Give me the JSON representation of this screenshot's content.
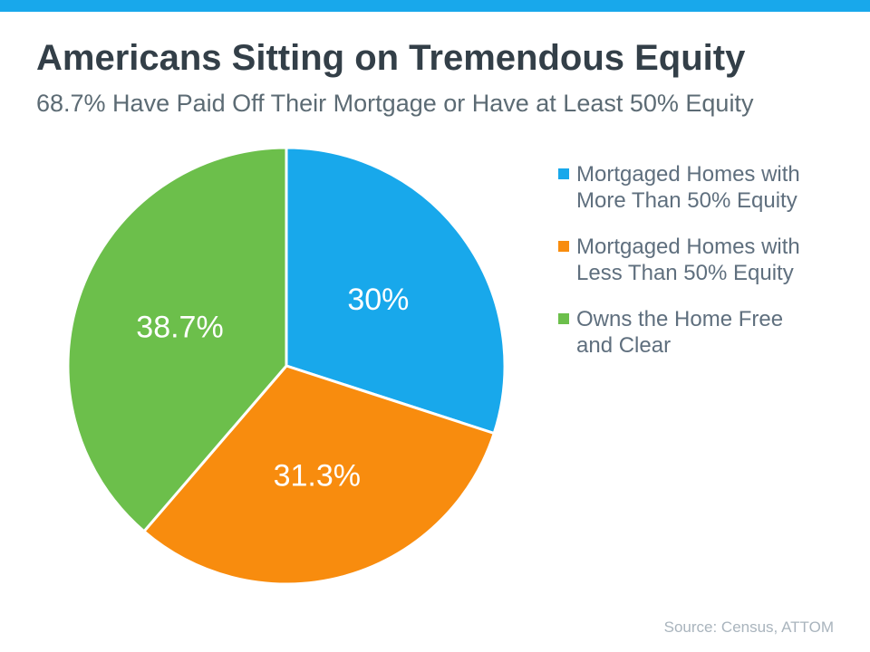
{
  "header": {
    "title": "Americans Sitting on Tremendous Equity",
    "subtitle": "68.7% Have Paid Off Their Mortgage or Have at Least 50% Equity"
  },
  "footer": {
    "source": "Source: Census, ATTOM"
  },
  "colors": {
    "accent_bar": "#18A8EB",
    "title_text": "#333F48",
    "subtitle_text": "#5C6B74",
    "legend_text": "#5F6F7E",
    "source_text": "#A9B4BD"
  },
  "chart_data": {
    "type": "pie",
    "title": "Americans Sitting on Tremendous Equity",
    "subtitle": "68.7% Have Paid Off Their Mortgage or Have at Least 50% Equity",
    "start_angle_deg": 0,
    "direction": "clockwise",
    "legend_position": "right",
    "slice_separator_color": "#ffffff",
    "slices": [
      {
        "label": "Mortgaged Homes with More Than 50% Equity",
        "value": 30,
        "display_label": "30%",
        "color": "#18A8EB"
      },
      {
        "label": "Mortgaged Homes with Less Than 50% Equity",
        "value": 31.3,
        "display_label": "31.3%",
        "color": "#F88C0E"
      },
      {
        "label": "Owns the Home Free and Clear",
        "value": 38.7,
        "display_label": "38.7%",
        "color": "#6CBF4B"
      }
    ],
    "source": "Source: Census, ATTOM"
  }
}
